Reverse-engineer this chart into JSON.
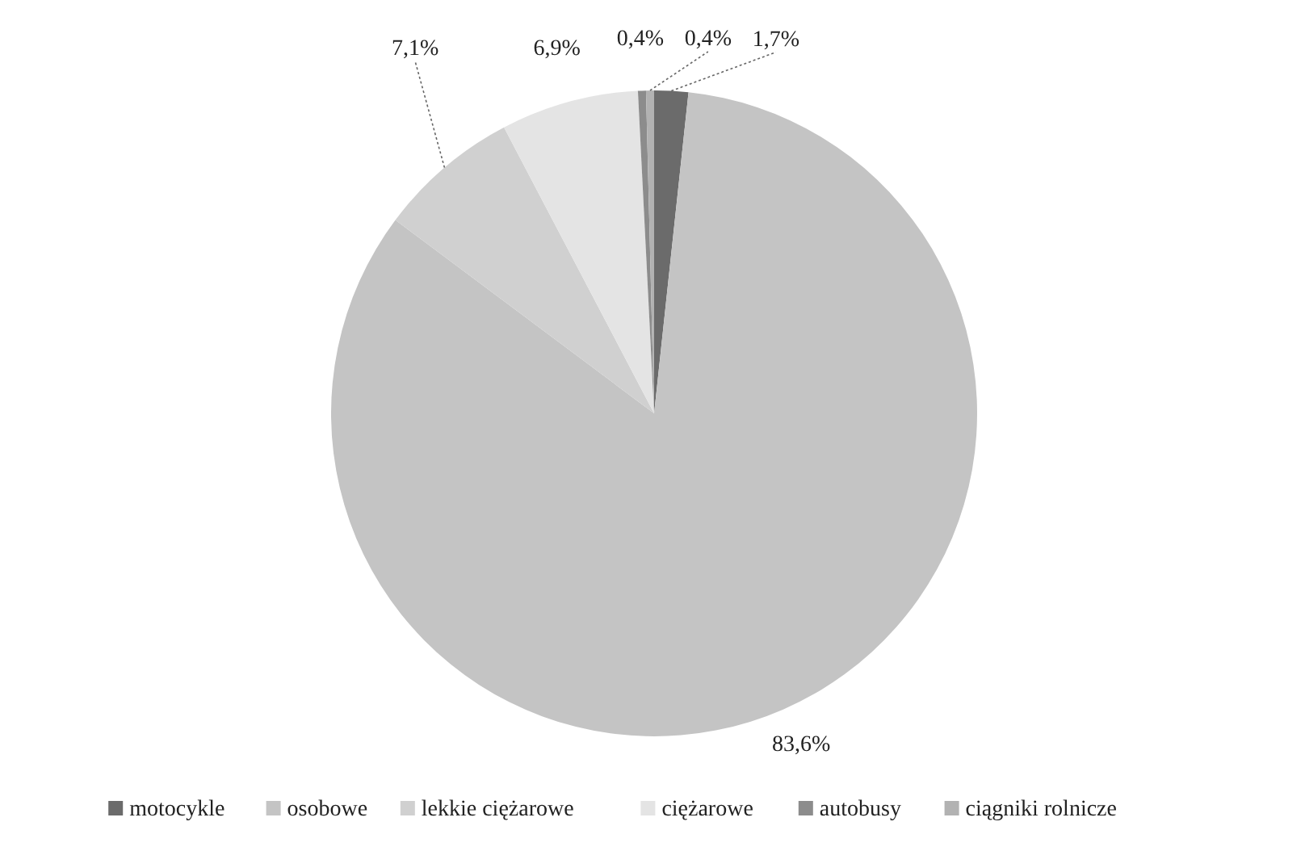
{
  "chart_data": {
    "type": "pie",
    "categories": [
      "motocykle",
      "osobowe",
      "lekkie ciężarowe",
      "ciężarowe",
      "autobusy",
      "ciągniki rolnicze"
    ],
    "values": [
      1.7,
      83.6,
      7.1,
      6.9,
      0.4,
      0.4
    ],
    "colors": [
      "#6b6b6b",
      "#c4c4c4",
      "#d0d0d0",
      "#e4e4e4",
      "#8c8c8c",
      "#b2b2b2"
    ],
    "value_labels": [
      "1,7%",
      "83,6%",
      "7,1%",
      "6,9%",
      "0,4%",
      "0,4%"
    ],
    "legend": "bottom"
  }
}
